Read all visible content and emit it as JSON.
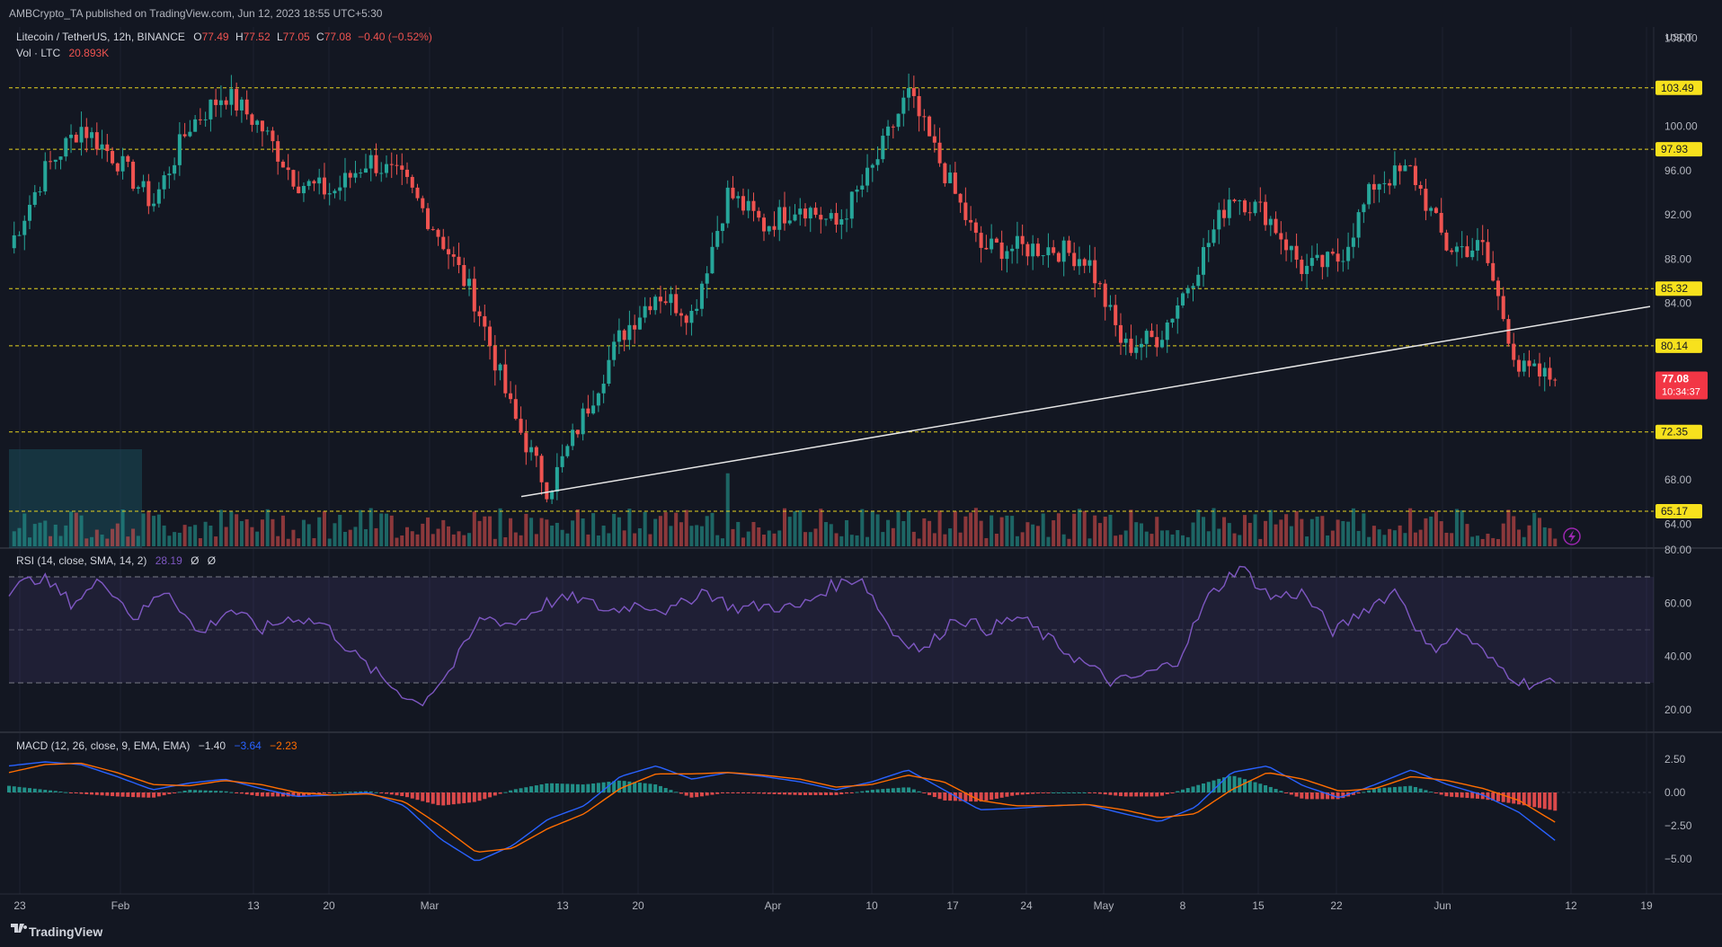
{
  "header": {
    "published": "AMBCrypto_TA published on TradingView.com, Jun 12, 2023 18:55 UTC+5:30",
    "symbol": "Litecoin / TetherUS, 12h, BINANCE",
    "o_label": "O",
    "o_value": "77.49",
    "h_label": "H",
    "h_value": "77.52",
    "l_label": "L",
    "l_value": "77.05",
    "c_label": "C",
    "c_value": "77.08",
    "change": "−0.40 (−0.52%)",
    "vol_label": "Vol · LTC",
    "vol_value": "20.893K"
  },
  "price_axis": {
    "currency": "USDT",
    "ticks": [
      "108.00",
      "100.00",
      "96.00",
      "92.00",
      "88.00",
      "84.00",
      "68.00",
      "64.00"
    ]
  },
  "levels": [
    {
      "value": 103.49,
      "label": "103.49"
    },
    {
      "value": 97.93,
      "label": "97.93"
    },
    {
      "value": 85.32,
      "label": "85.32"
    },
    {
      "value": 80.14,
      "label": "80.14"
    },
    {
      "value": 72.35,
      "label": "72.35"
    },
    {
      "value": 65.17,
      "label": "65.17"
    }
  ],
  "current_price": {
    "value": 77.08,
    "label": "77.08",
    "countdown": "10:34:37"
  },
  "rsi": {
    "label": "RSI (14, close, SMA, 14, 2)",
    "value": "28.19",
    "na1": "Ø",
    "na2": "Ø",
    "ticks": [
      "80.00",
      "60.00",
      "40.00",
      "20.00"
    ],
    "band_upper": 70,
    "band_mid": 50,
    "band_lower": 30
  },
  "macd": {
    "label": "MACD (12, 26, close, 9, EMA, EMA)",
    "v1": "−1.40",
    "v2": "−3.64",
    "v3": "−2.23",
    "ticks": [
      "2.50",
      "0.00",
      "−2.50",
      "−5.00"
    ]
  },
  "time_axis": {
    "labels": [
      "23",
      "Feb",
      "13",
      "20",
      "Mar",
      "13",
      "20",
      "Apr",
      "10",
      "17",
      "24",
      "May",
      "8",
      "15",
      "22",
      "Jun",
      "12",
      "19"
    ]
  },
  "footer": {
    "brand": "TradingView"
  },
  "colors": {
    "background": "#131722",
    "up": "#26a69a",
    "down": "#ef5350",
    "level_line": "#e8d51f",
    "level_tag": "#f7e11d",
    "rsi_line": "#7e57c2",
    "macd_line": "#2962ff",
    "signal_line": "#ff6d00"
  },
  "chart_data": {
    "type": "candlestick",
    "symbol": "LTC/USDT",
    "interval": "12h",
    "key_levels": [
      103.49,
      97.93,
      85.32,
      80.14,
      72.35,
      65.17
    ],
    "trendline": {
      "from": [
        "Mar 11",
        66.5
      ],
      "to": [
        "Jun 19",
        83.7
      ]
    },
    "price_range": [
      62,
      109
    ],
    "last_close": 77.08,
    "path": [
      [
        "Jan 23",
        89
      ],
      [
        "Jan 30",
        96
      ],
      [
        "Feb 3",
        100
      ],
      [
        "Feb 8",
        97
      ],
      [
        "Feb 10",
        93
      ],
      [
        "Feb 13",
        100
      ],
      [
        "Feb 16",
        103
      ],
      [
        "Feb 18",
        100
      ],
      [
        "Feb 21",
        95
      ],
      [
        "Feb 24",
        94
      ],
      [
        "Feb 28",
        97
      ],
      [
        "Mar 2",
        95
      ],
      [
        "Mar 6",
        90
      ],
      [
        "Mar 9",
        84
      ],
      [
        "Mar 10",
        74
      ],
      [
        "Mar 11",
        67
      ],
      [
        "Mar 13",
        74
      ],
      [
        "Mar 16",
        81
      ],
      [
        "Mar 20",
        85
      ],
      [
        "Mar 22",
        83
      ],
      [
        "Mar 25",
        94
      ],
      [
        "Mar 29",
        91
      ],
      [
        "Apr 4",
        93
      ],
      [
        "Apr 8",
        91
      ],
      [
        "Apr 13",
        96
      ],
      [
        "Apr 17",
        103
      ],
      [
        "Apr 19",
        96
      ],
      [
        "Apr 21",
        89
      ],
      [
        "Apr 25",
        89
      ],
      [
        "Apr 30",
        89
      ],
      [
        "May 5",
        88
      ],
      [
        "May 8",
        80
      ],
      [
        "May 12",
        81
      ],
      [
        "May 15",
        87
      ],
      [
        "May 17",
        94
      ],
      [
        "May 22",
        92
      ],
      [
        "May 25",
        87
      ],
      [
        "May 28",
        88
      ],
      [
        "Jun 1",
        95
      ],
      [
        "Jun 3",
        96
      ],
      [
        "Jun 5",
        89
      ],
      [
        "Jun 9",
        89
      ],
      [
        "Jun 10",
        78
      ],
      [
        "Jun 12",
        77.08
      ]
    ],
    "rsi_path": [
      65,
      70,
      60,
      69,
      54,
      66,
      48,
      58,
      50,
      55,
      52,
      40,
      30,
      22,
      35,
      55,
      52,
      60,
      62,
      57,
      60,
      57,
      65,
      58,
      59,
      58,
      66,
      70,
      49,
      42,
      55,
      50,
      55,
      46,
      38,
      30,
      33,
      38,
      62,
      74,
      62,
      64,
      49,
      58,
      65,
      42,
      50,
      38,
      30,
      30
    ],
    "macd_line": [
      2,
      2.3,
      2.1,
      1.2,
      0.2,
      0.7,
      1.0,
      0.3,
      -0.3,
      -0.2,
      0,
      -1,
      -3.5,
      -5.2,
      -4,
      -2,
      -1,
      1.2,
      2.0,
      1.0,
      1.5,
      1.2,
      0.8,
      0.2,
      0.8,
      1.7,
      0.2,
      -1.3,
      -1.2,
      -1.0,
      -0.9,
      -1.6,
      -2.2,
      -1.1,
      1.5,
      2.0,
      0.5,
      -0.4,
      0.6,
      1.7,
      0.6,
      -0.2,
      -1.5,
      -3.6
    ],
    "signal_line": [
      1.5,
      2.1,
      2.2,
      1.5,
      0.6,
      0.5,
      0.9,
      0.6,
      0,
      -0.2,
      -0.1,
      -0.7,
      -2.5,
      -4.5,
      -4.2,
      -2.7,
      -1.6,
      0.3,
      1.4,
      1.4,
      1.5,
      1.3,
      1.0,
      0.4,
      0.6,
      1.3,
      0.8,
      -0.6,
      -1.0,
      -1.0,
      -0.9,
      -1.3,
      -1.9,
      -1.6,
      0.2,
      1.5,
      1.0,
      0.1,
      0.3,
      1.2,
      0.9,
      0.3,
      -0.6,
      -2.23
    ]
  }
}
